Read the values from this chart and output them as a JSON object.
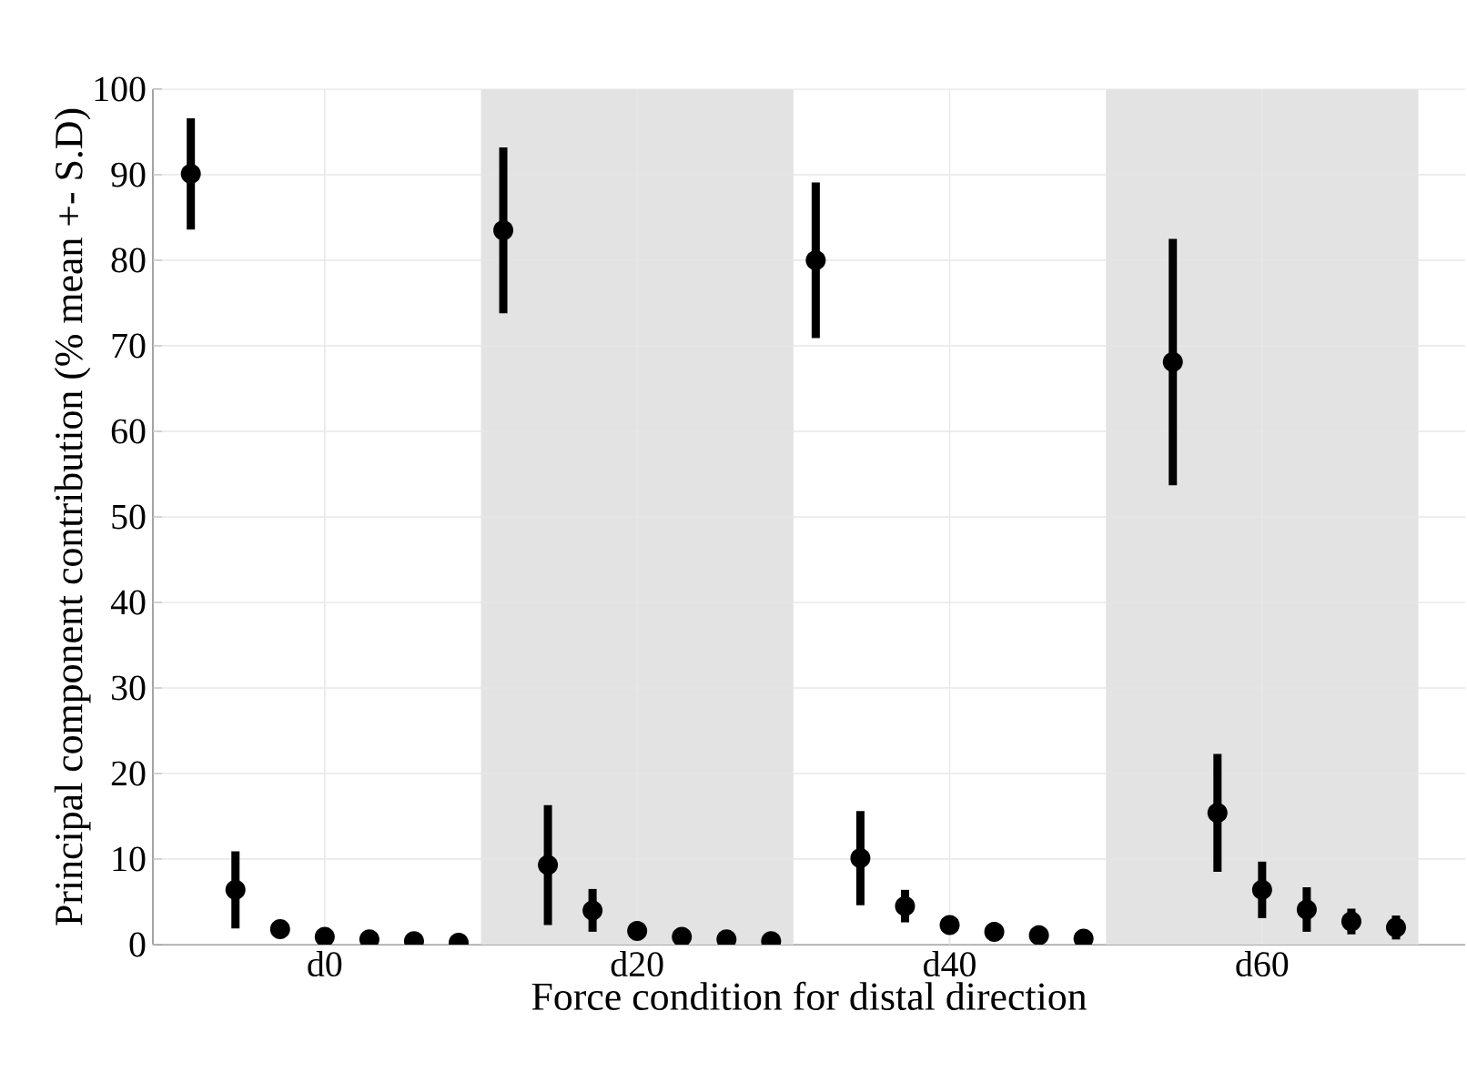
{
  "chart_data": {
    "type": "scatter",
    "xlabel": "Force condition for distal direction",
    "ylabel": "Principal component contribution (% mean +- S.D)",
    "categories": [
      null,
      null,
      null,
      "d0",
      null,
      null,
      null,
      null,
      null,
      null,
      "d20",
      null,
      null,
      null,
      null,
      null,
      null,
      "d40",
      null,
      null,
      null,
      null,
      null,
      null,
      "d60",
      null,
      null,
      null
    ],
    "ylim": [
      0,
      100
    ],
    "yticks": [
      0,
      10,
      20,
      30,
      40,
      50,
      60,
      70,
      80,
      90,
      100
    ],
    "grid": true,
    "marker": "circle",
    "series": [
      {
        "color": "#000000",
        "values": [
          90.1,
          6.4,
          1.8,
          0.9,
          0.6,
          0.4,
          0.2,
          83.5,
          9.3,
          4.0,
          1.6,
          0.9,
          0.6,
          0.4,
          80.0,
          10.1,
          4.5,
          2.3,
          1.5,
          1.1,
          0.7,
          null,
          68.1,
          15.4,
          6.4,
          4.1,
          2.7,
          2.0
        ],
        "errors": [
          6.5,
          4.5,
          null,
          null,
          null,
          null,
          null,
          9.7,
          7.0,
          2.5,
          null,
          null,
          null,
          null,
          9.1,
          5.5,
          1.9,
          null,
          null,
          null,
          null,
          null,
          14.4,
          6.9,
          3.3,
          2.6,
          1.5,
          1.4
        ]
      }
    ]
  }
}
